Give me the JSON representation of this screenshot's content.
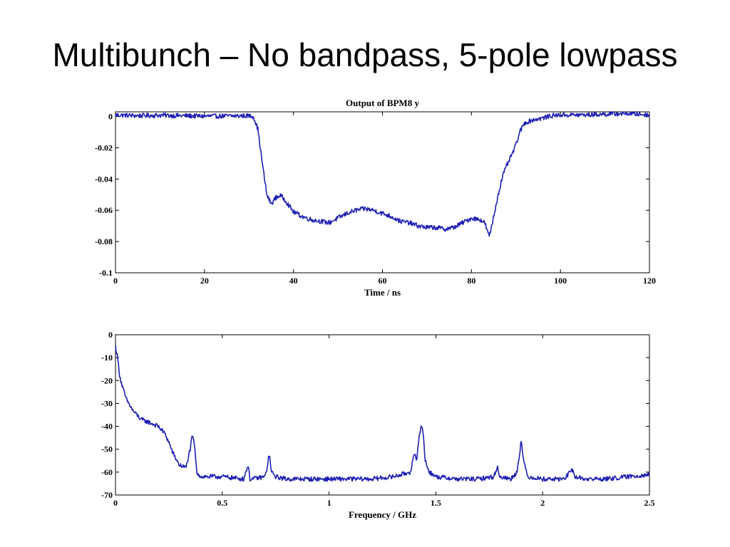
{
  "slide": {
    "title": "Multibunch – No bandpass, 5-pole lowpass"
  },
  "colors": {
    "series": "#1f1fb4",
    "axes": "#000000",
    "background": "#ffffff"
  },
  "chart_data": [
    {
      "type": "line",
      "title": "Output of BPM8 y",
      "xlabel": "Time / ns",
      "ylabel": "",
      "xlim": [
        0,
        120
      ],
      "ylim": [
        -0.1,
        0.003
      ],
      "x_ticks": [
        "0",
        "20",
        "40",
        "60",
        "80",
        "100",
        "120"
      ],
      "x_tick_values": [
        0,
        20,
        40,
        60,
        80,
        100,
        120
      ],
      "y_ticks": [
        "0",
        "-0.02",
        "-0.04",
        "-0.06",
        "-0.08",
        "-0.1"
      ],
      "y_tick_values": [
        0,
        -0.02,
        -0.04,
        -0.06,
        -0.08,
        -0.1
      ],
      "grid": false,
      "legend": "none",
      "series": [
        {
          "x": [
            0,
            5,
            10,
            15,
            20,
            25,
            30,
            31,
            32,
            33,
            34,
            35,
            36,
            37,
            38,
            39,
            40,
            42,
            44,
            46,
            48,
            50,
            52,
            54,
            56,
            58,
            60,
            62,
            64,
            66,
            68,
            70,
            72,
            74,
            76,
            78,
            80,
            82,
            83,
            84,
            85,
            86,
            87,
            88,
            89,
            90,
            91,
            92,
            94,
            96,
            98,
            100,
            105,
            110,
            115,
            120
          ],
          "values": [
            0.001,
            0.0005,
            0.0008,
            0.0005,
            0.0002,
            0.0003,
            0.0005,
            0.0,
            -0.008,
            -0.03,
            -0.05,
            -0.056,
            -0.052,
            -0.0505,
            -0.053,
            -0.057,
            -0.061,
            -0.064,
            -0.066,
            -0.067,
            -0.068,
            -0.065,
            -0.062,
            -0.06,
            -0.059,
            -0.06,
            -0.062,
            -0.064,
            -0.067,
            -0.068,
            -0.07,
            -0.071,
            -0.071,
            -0.072,
            -0.071,
            -0.068,
            -0.065,
            -0.066,
            -0.068,
            -0.077,
            -0.064,
            -0.05,
            -0.038,
            -0.031,
            -0.025,
            -0.018,
            -0.009,
            -0.004,
            -0.002,
            -0.001,
            0.0005,
            0.001,
            0.001,
            0.0015,
            0.002,
            0.001
          ],
          "noise": 0.0015
        }
      ]
    },
    {
      "type": "line",
      "title": "",
      "xlabel": "Frequency / GHz",
      "ylabel": "",
      "xlim": [
        0,
        2.5
      ],
      "ylim": [
        -70,
        0
      ],
      "x_ticks": [
        "0",
        "0.5",
        "1",
        "1.5",
        "2",
        "2.5"
      ],
      "x_tick_values": [
        0,
        0.5,
        1,
        1.5,
        2,
        2.5
      ],
      "y_ticks": [
        "0",
        "-10",
        "-20",
        "-30",
        "-40",
        "-50",
        "-60",
        "-70"
      ],
      "y_tick_values": [
        0,
        -10,
        -20,
        -30,
        -40,
        -50,
        -60,
        -70
      ],
      "grid": false,
      "legend": "none",
      "series": [
        {
          "x": [
            0.0,
            0.01,
            0.02,
            0.03,
            0.05,
            0.08,
            0.1,
            0.12,
            0.15,
            0.2,
            0.23,
            0.25,
            0.27,
            0.3,
            0.33,
            0.35,
            0.36,
            0.37,
            0.38,
            0.4,
            0.5,
            0.6,
            0.62,
            0.63,
            0.64,
            0.7,
            0.71,
            0.72,
            0.73,
            0.75,
            0.8,
            1.0,
            1.2,
            1.3,
            1.38,
            1.4,
            1.41,
            1.42,
            1.43,
            1.44,
            1.45,
            1.47,
            1.5,
            1.6,
            1.7,
            1.77,
            1.79,
            1.8,
            1.85,
            1.88,
            1.9,
            1.91,
            1.93,
            2.0,
            2.1,
            2.14,
            2.15,
            2.2,
            2.3,
            2.4,
            2.5
          ],
          "values": [
            -5,
            -10,
            -18,
            -22,
            -28,
            -33,
            -35,
            -37,
            -38,
            -40,
            -43,
            -47,
            -52,
            -57,
            -58,
            -50,
            -44,
            -48,
            -60,
            -62,
            -62,
            -63,
            -57,
            -63,
            -63,
            -62,
            -58,
            -52,
            -60,
            -62,
            -63,
            -63,
            -63,
            -62,
            -60,
            -52,
            -56,
            -45,
            -40,
            -42,
            -55,
            -60,
            -62,
            -63,
            -63,
            -62,
            -58,
            -62,
            -63,
            -60,
            -46,
            -55,
            -62,
            -63,
            -63,
            -59,
            -62,
            -63,
            -63,
            -62,
            -61
          ],
          "noise": 1.0
        }
      ]
    }
  ]
}
